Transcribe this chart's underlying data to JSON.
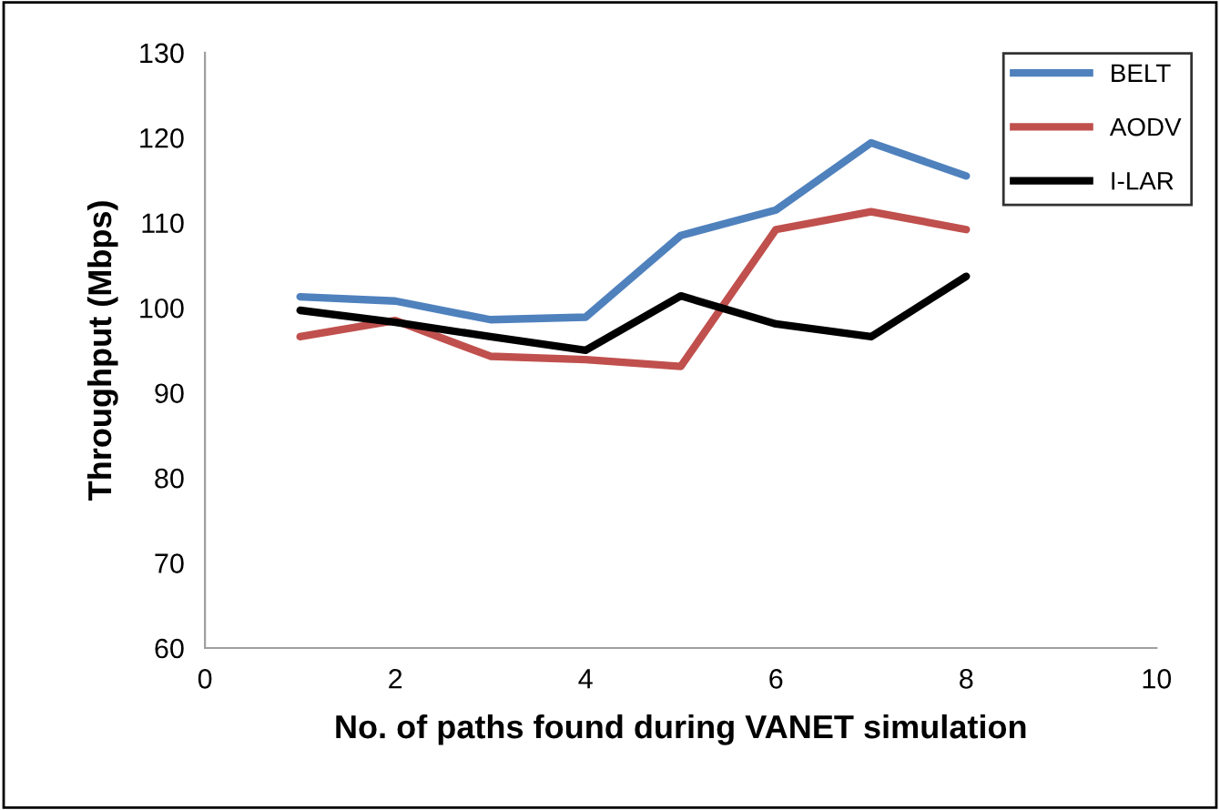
{
  "chart_data": {
    "type": "line",
    "xlabel": "No. of paths found during VANET simulation",
    "ylabel": "Throughput (Mbps)",
    "x": [
      1,
      2,
      3,
      4,
      5,
      6,
      7,
      8
    ],
    "series": [
      {
        "name": "BELT",
        "color": "#4f81bd",
        "values": [
          101.3,
          100.8,
          98.6,
          98.9,
          108.5,
          111.5,
          119.4,
          115.5
        ]
      },
      {
        "name": "AODV",
        "color": "#c0504d",
        "values": [
          96.6,
          98.5,
          94.3,
          93.9,
          93.1,
          109.2,
          111.3,
          109.2
        ]
      },
      {
        "name": "I-LAR",
        "color": "#000000",
        "values": [
          99.7,
          98.3,
          96.6,
          95.0,
          101.4,
          98.1,
          96.6,
          103.7
        ]
      }
    ],
    "xlim": [
      0,
      10
    ],
    "xticks": [
      0,
      2,
      4,
      6,
      8,
      10
    ],
    "ylim": [
      60,
      130
    ],
    "yticks": [
      60,
      70,
      80,
      90,
      100,
      110,
      120,
      130
    ],
    "grid": false,
    "legend": "top right",
    "marker": "none",
    "line_style": "solid"
  }
}
